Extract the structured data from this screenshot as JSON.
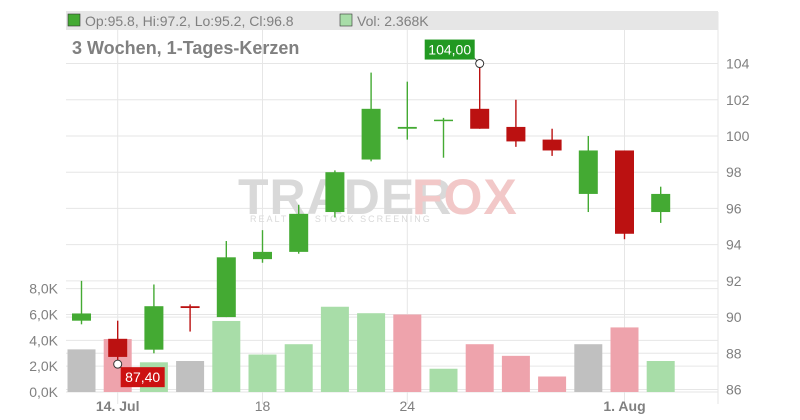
{
  "legend": {
    "ohlc_text": "Op:95.8, Hi:97.2, Lo:95.2, Cl:96.8",
    "volume_text": "Vol: 2.368K"
  },
  "subtitle": "3 Wochen, 1-Tages-Kerzen",
  "watermark": {
    "brand_left": "TRADER",
    "brand_right": "FOX",
    "tagline": "REALTIME STOCK SCREENING"
  },
  "callouts": {
    "high_label": "104,00",
    "low_label": "87,40"
  },
  "colors": {
    "up": "#44aa33",
    "down": "#bb1111",
    "vol_up": "#a8dda8",
    "vol_down": "#eea3ac",
    "vol_neutral": "#c0c0c0",
    "grid": "#e6e6e6",
    "axis_text": "#808080",
    "legend_bar": "#e6e6e6",
    "watermark": "#d9d9d9",
    "watermark_accent": "#f2c8c8"
  },
  "chart_data": {
    "type": "candlestick",
    "x_tick_labels": [
      "14. Jul",
      "18",
      "24",
      "1. Aug"
    ],
    "x_tick_index": [
      1,
      5,
      9,
      15
    ],
    "price_axis": {
      "ticks": [
        86,
        88,
        90,
        92,
        94,
        96,
        98,
        100,
        102,
        104
      ],
      "range": [
        85.2,
        105.3
      ],
      "side": "right"
    },
    "volume_axis": {
      "ticks": [
        0,
        2000,
        4000,
        6000,
        8000
      ],
      "tick_labels": [
        "0,0K",
        "2,0K",
        "4,0K",
        "6,0K",
        "8,0K"
      ],
      "range": [
        0,
        9600
      ],
      "side": "left"
    },
    "candles": [
      {
        "o": 89.8,
        "h": 92.0,
        "l": 89.6,
        "c": 90.2
      },
      {
        "o": 88.8,
        "h": 89.8,
        "l": 87.4,
        "c": 87.8
      },
      {
        "o": 88.2,
        "h": 91.8,
        "l": 88.0,
        "c": 90.6
      },
      {
        "o": 90.6,
        "h": 90.7,
        "l": 89.2,
        "c": 90.5
      },
      {
        "o": 90.0,
        "h": 94.2,
        "l": 90.0,
        "c": 93.3
      },
      {
        "o": 93.2,
        "h": 94.8,
        "l": 93.0,
        "c": 93.6
      },
      {
        "o": 93.6,
        "h": 96.2,
        "l": 93.5,
        "c": 95.7
      },
      {
        "o": 95.8,
        "h": 98.1,
        "l": 95.5,
        "c": 98.0
      },
      {
        "o": 98.7,
        "h": 103.5,
        "l": 98.6,
        "c": 101.5
      },
      {
        "o": 100.4,
        "h": 103.0,
        "l": 99.8,
        "c": 100.5
      },
      {
        "o": 100.9,
        "h": 101.0,
        "l": 98.8,
        "c": 100.9
      },
      {
        "o": 101.5,
        "h": 104.0,
        "l": 100.4,
        "c": 100.4
      },
      {
        "o": 100.5,
        "h": 102.0,
        "l": 99.4,
        "c": 99.7
      },
      {
        "o": 99.8,
        "h": 100.4,
        "l": 98.9,
        "c": 99.2
      },
      {
        "o": 96.8,
        "h": 100.0,
        "l": 95.8,
        "c": 99.2
      },
      {
        "o": 99.2,
        "h": 99.2,
        "l": 94.3,
        "c": 94.6
      },
      {
        "o": 95.8,
        "h": 97.2,
        "l": 95.2,
        "c": 96.8
      }
    ],
    "volumes": [
      {
        "v": 3300,
        "kind": "neutral"
      },
      {
        "v": 4100,
        "kind": "down"
      },
      {
        "v": 2300,
        "kind": "up"
      },
      {
        "v": 2400,
        "kind": "neutral"
      },
      {
        "v": 5500,
        "kind": "up"
      },
      {
        "v": 2900,
        "kind": "up"
      },
      {
        "v": 3700,
        "kind": "up"
      },
      {
        "v": 6600,
        "kind": "up"
      },
      {
        "v": 6100,
        "kind": "up"
      },
      {
        "v": 6000,
        "kind": "down"
      },
      {
        "v": 1800,
        "kind": "up"
      },
      {
        "v": 3700,
        "kind": "down"
      },
      {
        "v": 2800,
        "kind": "down"
      },
      {
        "v": 1200,
        "kind": "down"
      },
      {
        "v": 3700,
        "kind": "neutral"
      },
      {
        "v": 5000,
        "kind": "down"
      },
      {
        "v": 2400,
        "kind": "up"
      }
    ],
    "highlights": {
      "high_index": 11,
      "high_value": 104.0,
      "low_index": 1,
      "low_value": 87.4
    },
    "grid": true
  }
}
